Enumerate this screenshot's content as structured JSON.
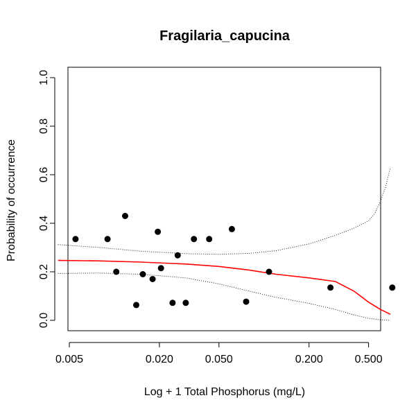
{
  "chart_data": {
    "type": "scatter",
    "title": "Fragilaria_capucina",
    "xlabel": "Log + 1 Total Phosphorus (mg/L)",
    "ylabel": "Probability of occurrence",
    "x_scale": "log",
    "x_ticks": [
      0.005,
      0.02,
      0.05,
      0.2,
      0.5
    ],
    "x_tick_labels": [
      "0.005",
      "0.020",
      "0.050",
      "0.200",
      "0.500"
    ],
    "y_ticks": [
      0.0,
      0.2,
      0.4,
      0.6,
      0.8,
      1.0
    ],
    "y_tick_labels": [
      "0.0",
      "0.2",
      "0.4",
      "0.6",
      "0.8",
      "1.0"
    ],
    "ylim": [
      0,
      1
    ],
    "grid": false,
    "colors": {
      "fit": "#ff0000",
      "points": "#000000",
      "ci": "#000000"
    },
    "points": [
      {
        "x": 0.0055,
        "y": 0.335
      },
      {
        "x": 0.009,
        "y": 0.335
      },
      {
        "x": 0.0103,
        "y": 0.2
      },
      {
        "x": 0.0118,
        "y": 0.43
      },
      {
        "x": 0.014,
        "y": 0.063
      },
      {
        "x": 0.0155,
        "y": 0.19
      },
      {
        "x": 0.018,
        "y": 0.17
      },
      {
        "x": 0.0195,
        "y": 0.365
      },
      {
        "x": 0.0205,
        "y": 0.215
      },
      {
        "x": 0.0245,
        "y": 0.072
      },
      {
        "x": 0.0265,
        "y": 0.268
      },
      {
        "x": 0.03,
        "y": 0.072
      },
      {
        "x": 0.034,
        "y": 0.335
      },
      {
        "x": 0.043,
        "y": 0.335
      },
      {
        "x": 0.061,
        "y": 0.376
      },
      {
        "x": 0.076,
        "y": 0.077
      },
      {
        "x": 0.108,
        "y": 0.2
      },
      {
        "x": 0.278,
        "y": 0.135
      },
      {
        "x": 0.72,
        "y": 0.135
      }
    ],
    "series": [
      {
        "role": "fit",
        "x": [
          0.0042,
          0.008,
          0.015,
          0.03,
          0.05,
          0.08,
          0.12,
          0.2,
          0.3,
          0.4,
          0.5,
          0.6,
          0.7
        ],
        "y": [
          0.247,
          0.245,
          0.24,
          0.232,
          0.222,
          0.207,
          0.19,
          0.175,
          0.16,
          0.12,
          0.075,
          0.045,
          0.025
        ]
      },
      {
        "role": "upper-ci",
        "x": [
          0.0042,
          0.008,
          0.015,
          0.03,
          0.05,
          0.08,
          0.12,
          0.2,
          0.3,
          0.4,
          0.5,
          0.55,
          0.6,
          0.65,
          0.7
        ],
        "y": [
          0.312,
          0.3,
          0.285,
          0.275,
          0.272,
          0.276,
          0.287,
          0.315,
          0.35,
          0.38,
          0.41,
          0.44,
          0.49,
          0.55,
          0.63
        ]
      },
      {
        "role": "lower-ci",
        "x": [
          0.0042,
          0.008,
          0.015,
          0.03,
          0.05,
          0.08,
          0.12,
          0.2,
          0.3,
          0.4,
          0.5,
          0.6,
          0.7
        ],
        "y": [
          0.193,
          0.195,
          0.19,
          0.175,
          0.15,
          0.12,
          0.095,
          0.07,
          0.045,
          0.022,
          0.008,
          0.002,
          0.0
        ]
      }
    ]
  }
}
